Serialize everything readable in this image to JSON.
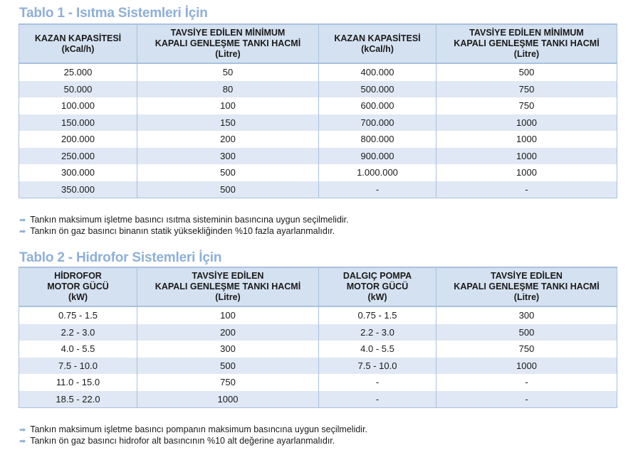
{
  "table1": {
    "title": "Tablo 1 - Isıtma Sistemleri İçin",
    "headers": [
      [
        "KAZAN KAPASİTESİ",
        "(kCal/h)"
      ],
      [
        "TAVSİYE EDİLEN MİNİMUM",
        "KAPALI GENLEŞME TANKI HACMİ",
        "(Litre)"
      ],
      [
        "KAZAN KAPASİTESİ",
        "(kCal/h)"
      ],
      [
        "TAVSİYE EDİLEN MİNİMUM",
        "KAPALI GENLEŞME TANKI HACMİ",
        "(Litre)"
      ]
    ],
    "rows": [
      [
        "25.000",
        "50",
        "400.000",
        "500"
      ],
      [
        "50.000",
        "80",
        "500.000",
        "750"
      ],
      [
        "100.000",
        "100",
        "600.000",
        "750"
      ],
      [
        "150.000",
        "150",
        "700.000",
        "1000"
      ],
      [
        "200.000",
        "200",
        "800.000",
        "1000"
      ],
      [
        "250.000",
        "300",
        "900.000",
        "1000"
      ],
      [
        "300.000",
        "500",
        "1.000.000",
        "1000"
      ],
      [
        "350.000",
        "500",
        "-",
        "-"
      ]
    ],
    "notes": [
      "Tankın maksimum işletme basıncı ısıtma sisteminin basıncına uygun seçilmelidir.",
      "Tankın ön gaz basıncı binanın statik yüksekliğinden %10 fazla ayarlanmalıdır."
    ]
  },
  "table2": {
    "title": "Tablo 2 - Hidrofor Sistemleri İçin",
    "headers": [
      [
        "HİDROFOR",
        "MOTOR GÜCÜ",
        "(kW)"
      ],
      [
        "TAVSİYE EDİLEN",
        "KAPALI GENLEŞME TANKI HACMİ",
        "(Litre)"
      ],
      [
        "DALGIÇ POMPA",
        "MOTOR GÜCÜ",
        "(kW)"
      ],
      [
        "TAVSİYE EDİLEN",
        "KAPALI GENLEŞME TANKI HACMİ",
        "(Litre)"
      ]
    ],
    "rows": [
      [
        "0.75 - 1.5",
        "100",
        "0.75 - 1.5",
        "300"
      ],
      [
        "2.2 - 3.0",
        "200",
        "2.2 - 3.0",
        "500"
      ],
      [
        "4.0 - 5.5",
        "300",
        "4.0 - 5.5",
        "750"
      ],
      [
        "7.5 - 10.0",
        "500",
        "7.5 - 10.0",
        "1000"
      ],
      [
        "11.0 - 15.0",
        "750",
        "-",
        "-"
      ],
      [
        "18.5 - 22.0",
        "1000",
        "-",
        "-"
      ]
    ],
    "notes": [
      "Tankın maksimum işletme basıncı pompanın maksimum basıncına uygun seçilmelidir.",
      "Tankın ön gaz basıncı hidrofor alt basıncının %10 alt değerine ayarlanmalıdır."
    ]
  },
  "colors": {
    "title": "#8eafd6",
    "header_bg": "#d4e1f0",
    "alt_row": "#dfe8f4"
  },
  "icons": {
    "bullet": "arrow-right-icon"
  }
}
